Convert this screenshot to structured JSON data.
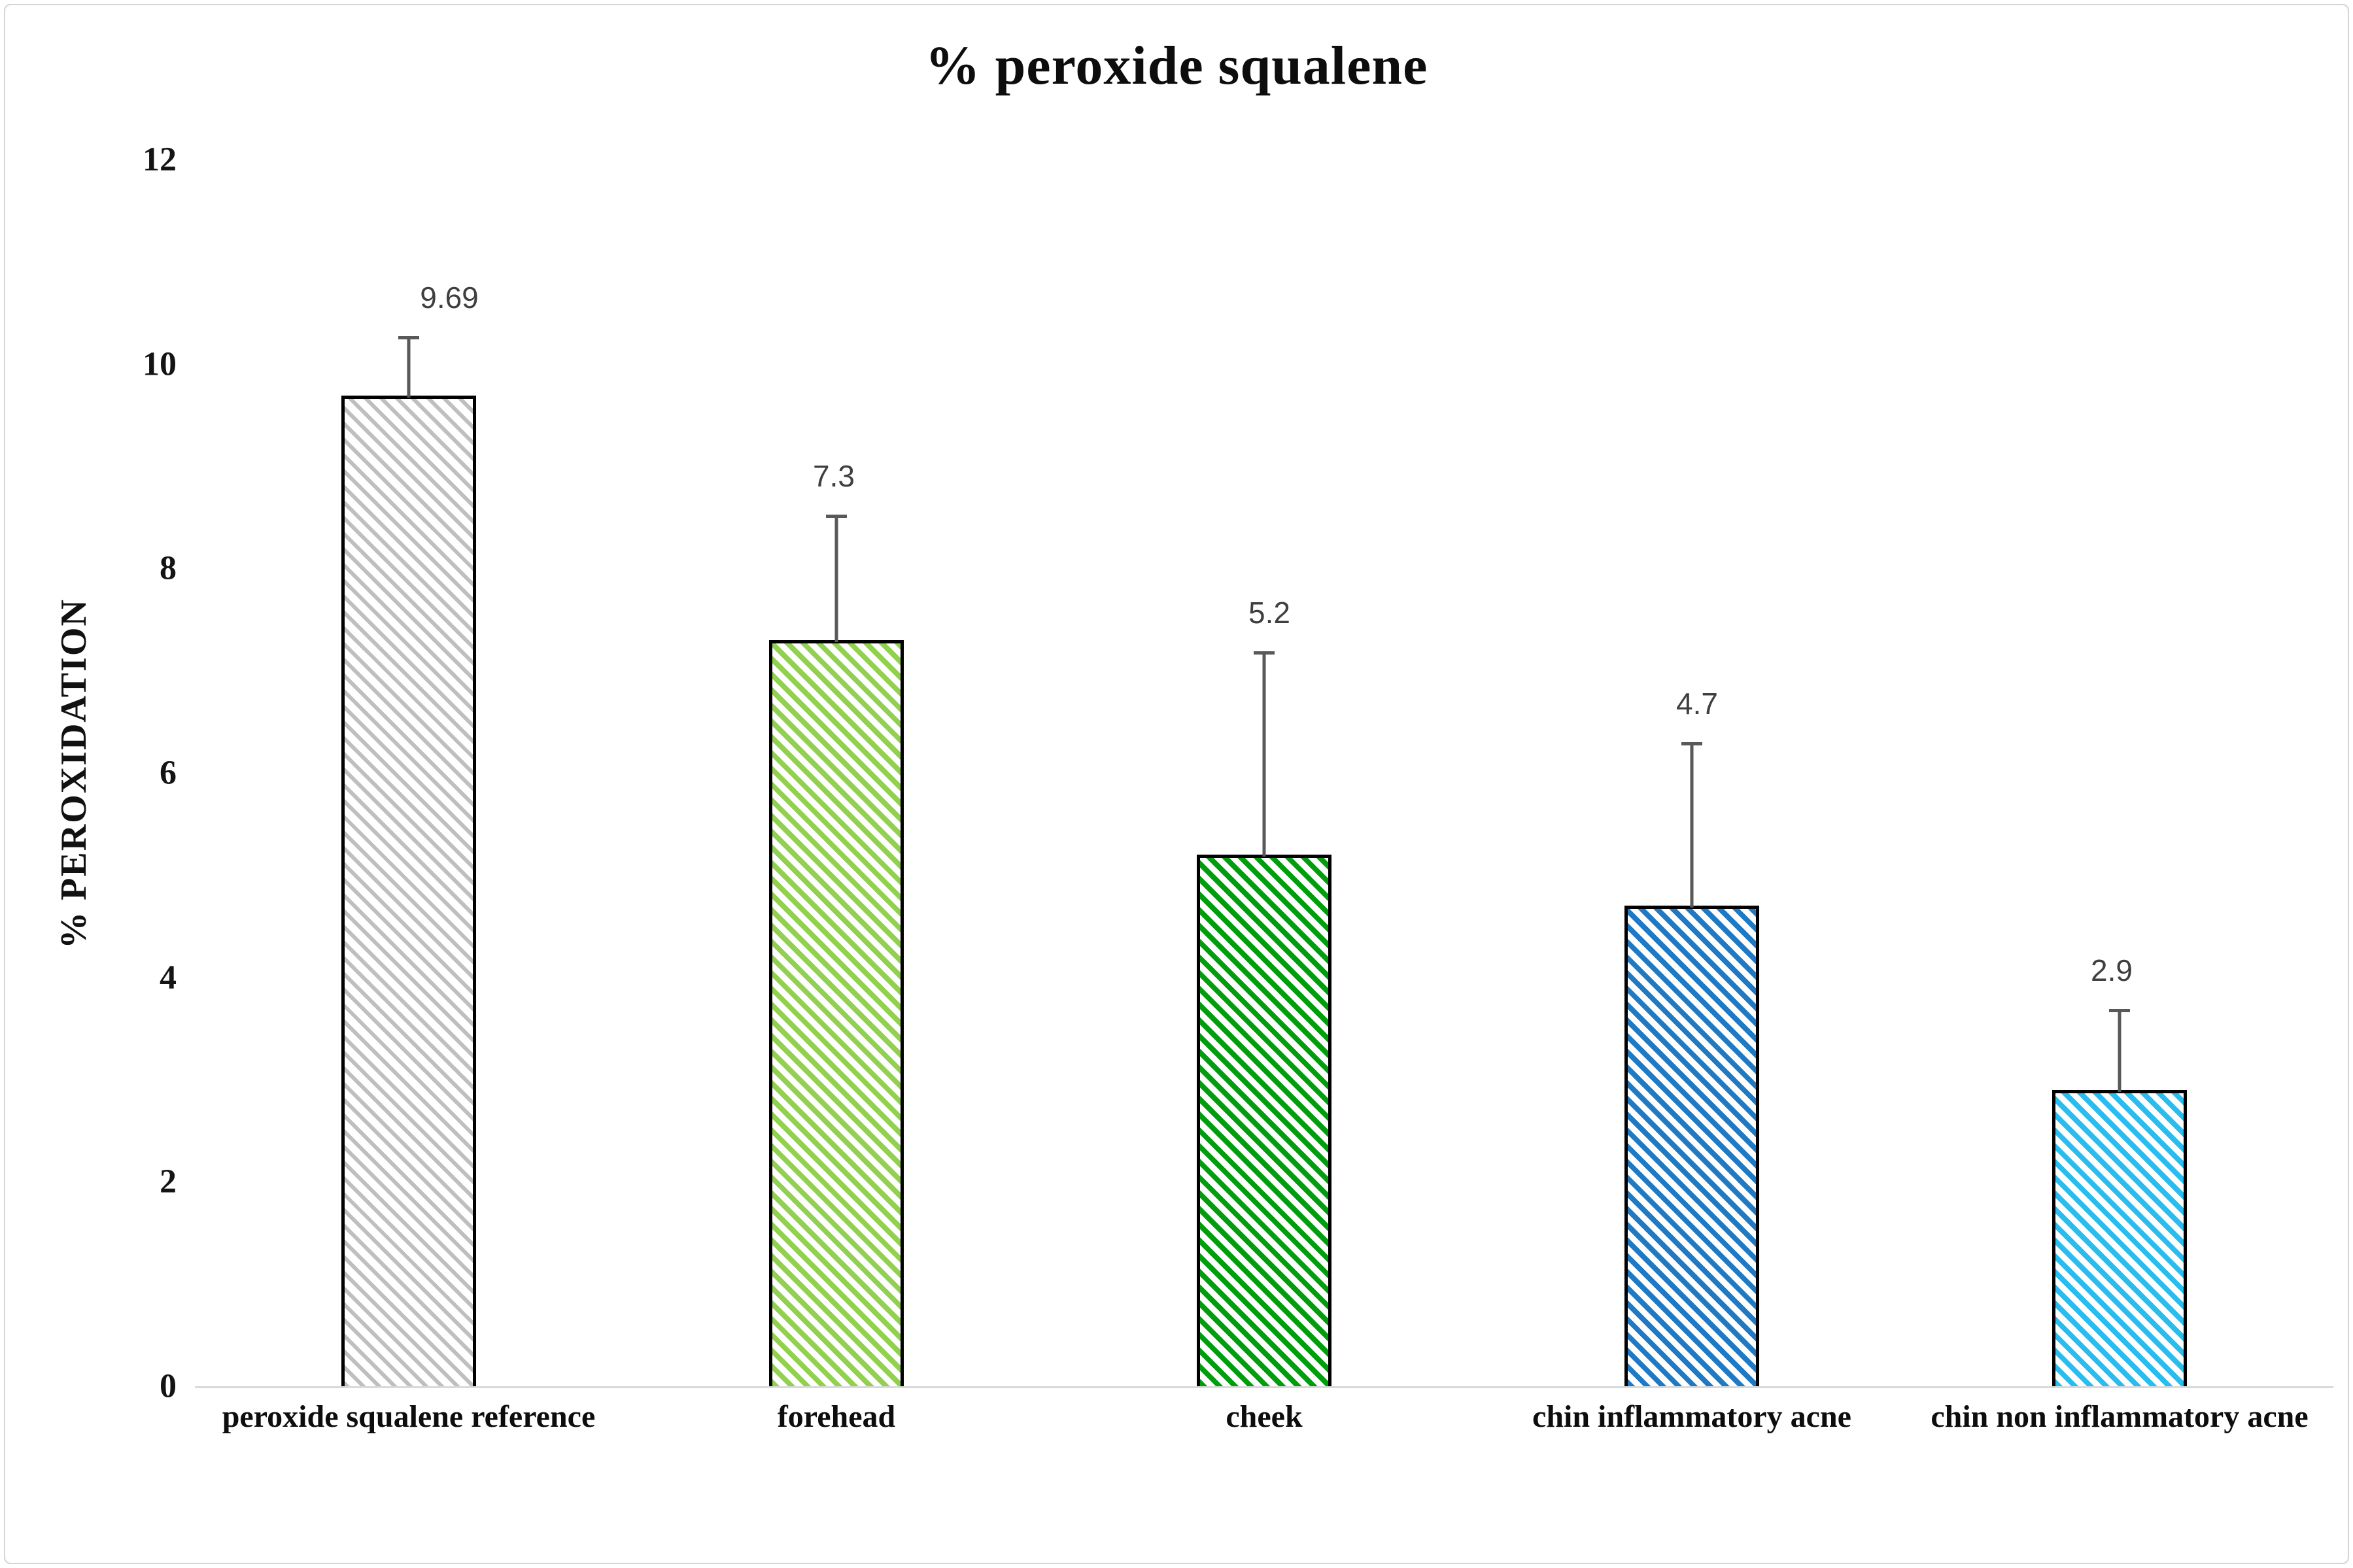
{
  "title": "% peroxide squalene",
  "y_axis": {
    "title": "% PEROXIDATION",
    "ticks": [
      "12",
      "10",
      "8",
      "6",
      "4",
      "2",
      "0"
    ]
  },
  "chart_data": {
    "type": "bar",
    "title": "% peroxide squalene",
    "xlabel": "",
    "ylabel": "% PEROXIDATION",
    "ylim": [
      0,
      12
    ],
    "yticks": [
      0,
      2,
      4,
      6,
      8,
      10,
      12
    ],
    "grid": false,
    "legend": false,
    "hatch_style": "diagonal-down-stripes",
    "categories": [
      "peroxide squalene reference",
      "forehead",
      "cheek",
      "chin inflammatory acne",
      "chin non inflammatory acne"
    ],
    "values": [
      9.69,
      7.3,
      5.2,
      4.7,
      2.9
    ],
    "data_labels": [
      "9.69",
      "7.3",
      "5.2",
      "4.7",
      "2.9"
    ],
    "error_plus": [
      0.58,
      1.23,
      1.99,
      1.6,
      0.79
    ],
    "bar_colors": [
      "#BFBFBF",
      "#92D050",
      "#009E0D",
      "#1F7AC3",
      "#29BDEF"
    ],
    "bar_outline_color": "#000000",
    "error_bar_color": "#595959",
    "axis_line_color": "#D9D9D9",
    "data_label_color": "#3F3F3F"
  }
}
